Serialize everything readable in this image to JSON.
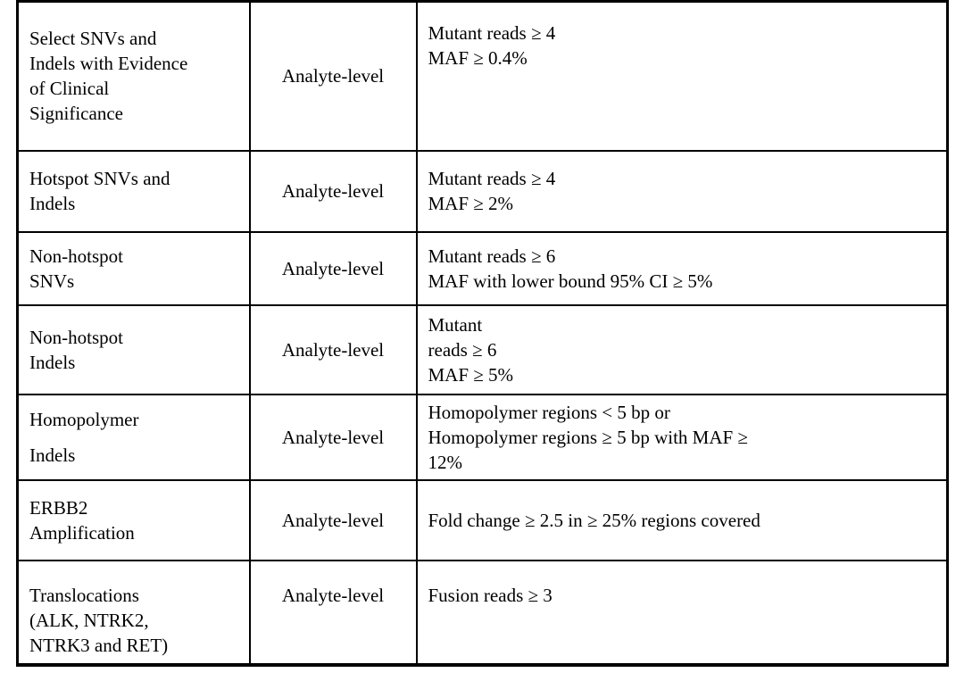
{
  "colors": {
    "background": "#ffffff",
    "border": "#000000",
    "text": "#000000"
  },
  "table": {
    "rows": [
      {
        "variant_type": "Select SNVs and\nIndels with Evidence\nof Clinical\nSignificance",
        "level": "Analyte-level",
        "criteria": "Mutant reads ≥ 4\nMAF ≥ 0.4%"
      },
      {
        "variant_type": "Hotspot SNVs and\nIndels",
        "level": "Analyte-level",
        "criteria": "Mutant reads ≥ 4\nMAF ≥ 2%"
      },
      {
        "variant_type": "Non-hotspot\nSNVs",
        "level": "Analyte-level",
        "criteria": "Mutant reads ≥ 6\nMAF with lower bound 95% CI ≥ 5%"
      },
      {
        "variant_type": "Non-hotspot\nIndels",
        "level": "Analyte-level",
        "criteria": "Mutant\nreads ≥ 6\nMAF ≥ 5%"
      },
      {
        "variant_type": "Homopolymer\nIndels",
        "level": "Analyte-level",
        "criteria": "Homopolymer regions < 5 bp or\nHomopolymer regions ≥ 5 bp with MAF ≥\n12%"
      },
      {
        "variant_type": "ERBB2\nAmplification",
        "level": "Analyte-level",
        "criteria": "Fold change ≥ 2.5 in ≥ 25% regions covered"
      },
      {
        "variant_type": "Translocations\n(ALK, NTRK2,\nNTRK3 and RET)",
        "level": "Analyte-level",
        "criteria": "Fusion reads ≥ 3"
      }
    ]
  }
}
